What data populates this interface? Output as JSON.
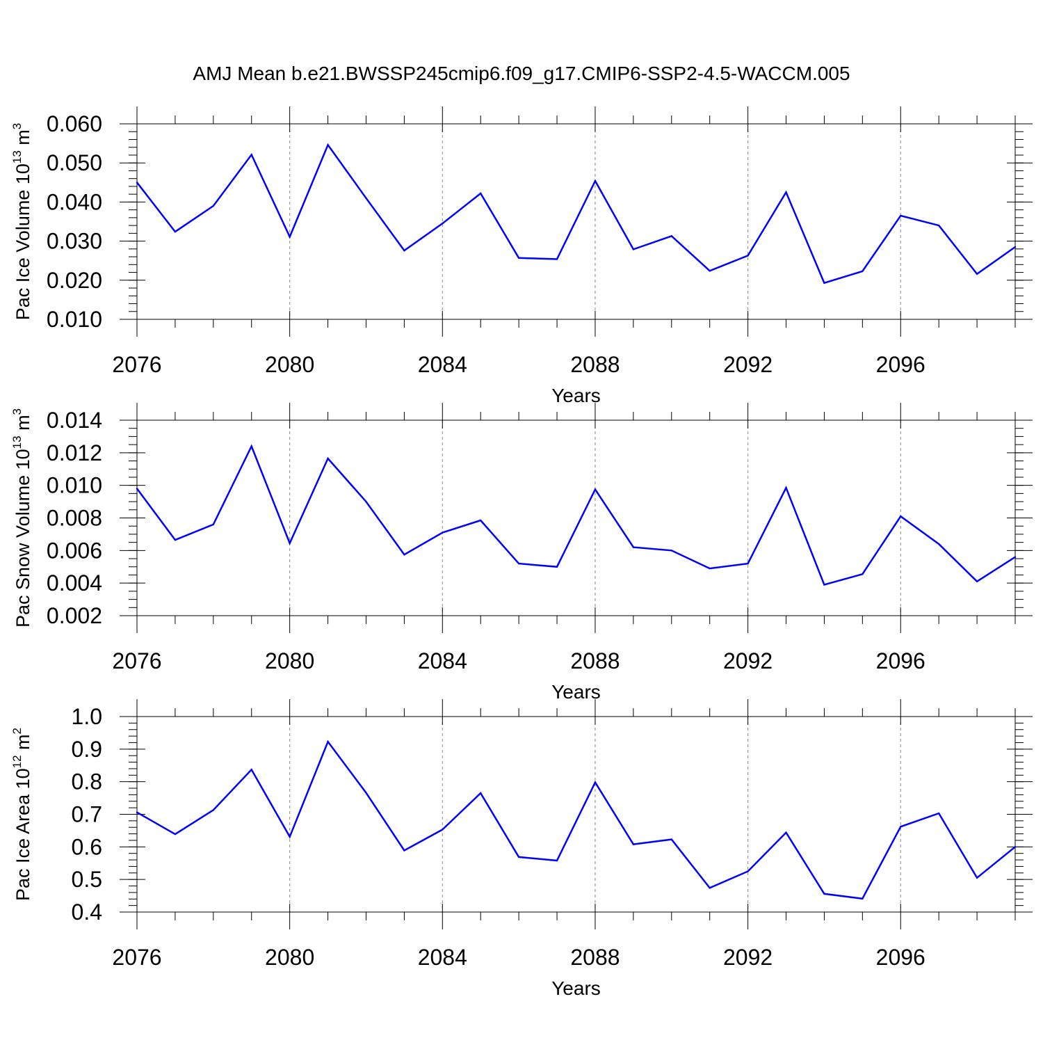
{
  "figure": {
    "title": "AMJ Mean b.e21.BWSSP245cmip6.f09_g17.CMIP6-SSP2-4.5-WACCM.005"
  },
  "colors": {
    "series": "#0000ff",
    "axes": "#000000",
    "grid": "#888888"
  },
  "chart_data": [
    {
      "type": "line",
      "title": "",
      "xlabel": "Years",
      "ylabel_main": "Pac Ice Volume 10",
      "ylabel_sup": "13",
      "ylabel_unit": " m",
      "ylabel_unit_sup": "3",
      "xlim": [
        2076,
        2099
      ],
      "ylim": [
        0.01,
        0.06
      ],
      "xticks": [
        2076,
        2080,
        2084,
        2088,
        2092,
        2096
      ],
      "yticks": [
        0.01,
        0.02,
        0.03,
        0.04,
        0.05,
        0.06
      ],
      "ytick_labels": [
        "0.010",
        "0.020",
        "0.030",
        "0.040",
        "0.050",
        "0.060"
      ],
      "y_minor_step": 0.002,
      "grid": "vertical dashed at major x ticks",
      "x": [
        2076,
        2077,
        2078,
        2079,
        2080,
        2081,
        2082,
        2083,
        2084,
        2085,
        2086,
        2087,
        2088,
        2089,
        2090,
        2091,
        2092,
        2093,
        2094,
        2095,
        2096,
        2097,
        2098,
        2099
      ],
      "values": [
        0.045,
        0.0324,
        0.039,
        0.0521,
        0.0311,
        0.0546,
        0.041,
        0.0276,
        0.0345,
        0.0422,
        0.0257,
        0.0254,
        0.0454,
        0.0279,
        0.0313,
        0.0224,
        0.0263,
        0.0425,
        0.0193,
        0.0223,
        0.0365,
        0.034,
        0.0216,
        0.0285
      ]
    },
    {
      "type": "line",
      "title": "",
      "xlabel": "Years",
      "ylabel_main": "Pac Snow Volume 10",
      "ylabel_sup": "13",
      "ylabel_unit": " m",
      "ylabel_unit_sup": "3",
      "xlim": [
        2076,
        2099
      ],
      "ylim": [
        0.002,
        0.014
      ],
      "xticks": [
        2076,
        2080,
        2084,
        2088,
        2092,
        2096
      ],
      "yticks": [
        0.002,
        0.004,
        0.006,
        0.008,
        0.01,
        0.012,
        0.014
      ],
      "ytick_labels": [
        "0.002",
        "0.004",
        "0.006",
        "0.008",
        "0.010",
        "0.012",
        "0.014"
      ],
      "y_minor_step": 0.0005,
      "grid": "vertical dashed at major x ticks",
      "x": [
        2076,
        2077,
        2078,
        2079,
        2080,
        2081,
        2082,
        2083,
        2084,
        2085,
        2086,
        2087,
        2088,
        2089,
        2090,
        2091,
        2092,
        2093,
        2094,
        2095,
        2096,
        2097,
        2098,
        2099
      ],
      "values": [
        0.0098,
        0.00665,
        0.0076,
        0.0124,
        0.00645,
        0.01165,
        0.009,
        0.00575,
        0.0071,
        0.00785,
        0.0052,
        0.005,
        0.00975,
        0.0062,
        0.006,
        0.0049,
        0.0052,
        0.00985,
        0.0039,
        0.00455,
        0.0081,
        0.0064,
        0.0041,
        0.0056
      ]
    },
    {
      "type": "line",
      "title": "",
      "xlabel": "Years",
      "ylabel_main": "Pac Ice Area 10",
      "ylabel_sup": "12",
      "ylabel_unit": " m",
      "ylabel_unit_sup": "2",
      "xlim": [
        2076,
        2099
      ],
      "ylim": [
        0.4,
        1.0
      ],
      "xticks": [
        2076,
        2080,
        2084,
        2088,
        2092,
        2096
      ],
      "yticks": [
        0.4,
        0.5,
        0.6,
        0.7,
        0.8,
        0.9,
        1.0
      ],
      "ytick_labels": [
        "0.4",
        "0.5",
        "0.6",
        "0.7",
        "0.8",
        "0.9",
        "1.0"
      ],
      "y_minor_step": 0.02,
      "grid": "vertical dashed at major x ticks",
      "x": [
        2076,
        2077,
        2078,
        2079,
        2080,
        2081,
        2082,
        2083,
        2084,
        2085,
        2086,
        2087,
        2088,
        2089,
        2090,
        2091,
        2092,
        2093,
        2094,
        2095,
        2096,
        2097,
        2098,
        2099
      ],
      "values": [
        0.706,
        0.639,
        0.713,
        0.837,
        0.631,
        0.923,
        0.766,
        0.589,
        0.653,
        0.765,
        0.569,
        0.558,
        0.798,
        0.608,
        0.623,
        0.474,
        0.525,
        0.644,
        0.456,
        0.441,
        0.662,
        0.703,
        0.505,
        0.6
      ]
    }
  ]
}
